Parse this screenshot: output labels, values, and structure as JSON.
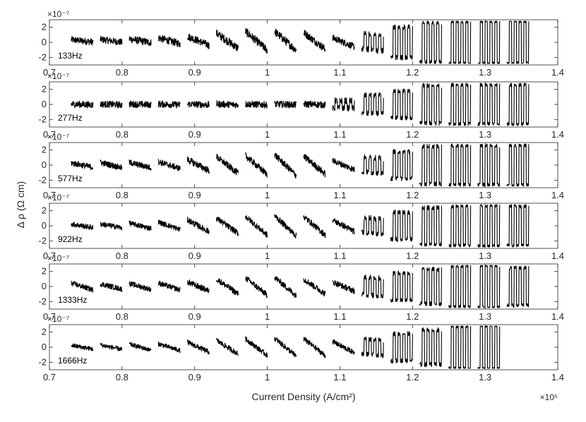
{
  "chart_data": {
    "type": "line",
    "subplot_count": 6,
    "xlabel": "Current Density (A/cm²)",
    "ylabel": "Δ ρ (Ω cm)",
    "x_exponent": "×10⁵",
    "y_exponent": "×10⁻⁷",
    "xlim": [
      0.7,
      1.4
    ],
    "ylim": [
      -3,
      3
    ],
    "xticks": [
      "0.7",
      "0.8",
      "0.9",
      "1",
      "1.1",
      "1.2",
      "1.3",
      "1.4"
    ],
    "yticks": [
      "2",
      "0",
      "-2"
    ],
    "segment_length": 0.03,
    "panels": [
      {
        "label": "133Hz",
        "segments": [
          {
            "x_start": 0.73,
            "offset": 0.2,
            "slope": 0.3,
            "square": 0,
            "noise": 0.45
          },
          {
            "x_start": 0.77,
            "offset": 0.2,
            "slope": 0.4,
            "square": 0,
            "noise": 0.45
          },
          {
            "x_start": 0.81,
            "offset": 0.2,
            "slope": 0.5,
            "square": 0,
            "noise": 0.5
          },
          {
            "x_start": 0.85,
            "offset": 0.2,
            "slope": 0.8,
            "square": 0,
            "noise": 0.5
          },
          {
            "x_start": 0.89,
            "offset": 0.2,
            "slope": 1.2,
            "square": 0,
            "noise": 0.5
          },
          {
            "x_start": 0.93,
            "offset": 0.2,
            "slope": 2.0,
            "square": 0,
            "noise": 0.55
          },
          {
            "x_start": 0.97,
            "offset": 0.2,
            "slope": 2.5,
            "square": 0,
            "noise": 0.55
          },
          {
            "x_start": 1.01,
            "offset": 0.2,
            "slope": 2.5,
            "square": 0,
            "noise": 0.55
          },
          {
            "x_start": 1.05,
            "offset": 0.2,
            "slope": 2.2,
            "square": 0,
            "noise": 0.5
          },
          {
            "x_start": 1.09,
            "offset": 0.0,
            "slope": 1.2,
            "square": 0,
            "noise": 0.45
          },
          {
            "x_start": 1.13,
            "offset": 0.0,
            "slope": 0.3,
            "square": 1.0,
            "noise": 0.4
          },
          {
            "x_start": 1.17,
            "offset": 0.0,
            "slope": 0.0,
            "square": 2.0,
            "noise": 0.35
          },
          {
            "x_start": 1.21,
            "offset": 0.0,
            "slope": 0.0,
            "square": 2.6,
            "noise": 0.3
          },
          {
            "x_start": 1.25,
            "offset": 0.0,
            "slope": 0.0,
            "square": 2.8,
            "noise": 0.25
          },
          {
            "x_start": 1.29,
            "offset": 0.0,
            "slope": 0.0,
            "square": 2.8,
            "noise": 0.25
          },
          {
            "x_start": 1.33,
            "offset": 0.0,
            "slope": 0.0,
            "square": 2.8,
            "noise": 0.25
          }
        ]
      },
      {
        "label": "277Hz",
        "segments": [
          {
            "x_start": 0.73,
            "offset": 0.0,
            "slope": 0.1,
            "square": 0,
            "noise": 0.45
          },
          {
            "x_start": 0.77,
            "offset": 0.0,
            "slope": 0.1,
            "square": 0,
            "noise": 0.45
          },
          {
            "x_start": 0.81,
            "offset": 0.0,
            "slope": 0.1,
            "square": 0,
            "noise": 0.45
          },
          {
            "x_start": 0.85,
            "offset": 0.0,
            "slope": 0.1,
            "square": 0,
            "noise": 0.45
          },
          {
            "x_start": 0.89,
            "offset": 0.0,
            "slope": 0.1,
            "square": 0,
            "noise": 0.45
          },
          {
            "x_start": 0.93,
            "offset": 0.0,
            "slope": 0.1,
            "square": 0,
            "noise": 0.45
          },
          {
            "x_start": 0.97,
            "offset": 0.0,
            "slope": 0.1,
            "square": 0,
            "noise": 0.45
          },
          {
            "x_start": 1.01,
            "offset": 0.0,
            "slope": 0.1,
            "square": 0,
            "noise": 0.45
          },
          {
            "x_start": 1.05,
            "offset": 0.0,
            "slope": 0.1,
            "square": 0,
            "noise": 0.45
          },
          {
            "x_start": 1.09,
            "offset": 0.0,
            "slope": 0.0,
            "square": 0.5,
            "noise": 0.4
          },
          {
            "x_start": 1.13,
            "offset": 0.0,
            "slope": 0.0,
            "square": 1.2,
            "noise": 0.35
          },
          {
            "x_start": 1.17,
            "offset": 0.0,
            "slope": 0.0,
            "square": 1.8,
            "noise": 0.3
          },
          {
            "x_start": 1.21,
            "offset": 0.0,
            "slope": 0.0,
            "square": 2.5,
            "noise": 0.3
          },
          {
            "x_start": 1.25,
            "offset": 0.0,
            "slope": 0.0,
            "square": 2.6,
            "noise": 0.25
          },
          {
            "x_start": 1.29,
            "offset": 0.0,
            "slope": 0.0,
            "square": 2.6,
            "noise": 0.25
          },
          {
            "x_start": 1.33,
            "offset": 0.0,
            "slope": 0.0,
            "square": 2.6,
            "noise": 0.25
          }
        ]
      },
      {
        "label": "577Hz",
        "segments": [
          {
            "x_start": 0.73,
            "offset": 0.0,
            "slope": 0.6,
            "square": 0,
            "noise": 0.4
          },
          {
            "x_start": 0.77,
            "offset": 0.0,
            "slope": 0.7,
            "square": 0,
            "noise": 0.4
          },
          {
            "x_start": 0.81,
            "offset": 0.0,
            "slope": 0.7,
            "square": 0,
            "noise": 0.4
          },
          {
            "x_start": 0.85,
            "offset": 0.0,
            "slope": 0.9,
            "square": 0,
            "noise": 0.4
          },
          {
            "x_start": 0.89,
            "offset": 0.0,
            "slope": 1.5,
            "square": 0,
            "noise": 0.45
          },
          {
            "x_start": 0.93,
            "offset": 0.0,
            "slope": 2.2,
            "square": 0,
            "noise": 0.45
          },
          {
            "x_start": 0.97,
            "offset": 0.0,
            "slope": 2.5,
            "square": 0,
            "noise": 0.45
          },
          {
            "x_start": 1.01,
            "offset": 0.0,
            "slope": 2.8,
            "square": 0,
            "noise": 0.45
          },
          {
            "x_start": 1.05,
            "offset": 0.0,
            "slope": 2.4,
            "square": 0,
            "noise": 0.45
          },
          {
            "x_start": 1.09,
            "offset": 0.0,
            "slope": 1.2,
            "square": 0,
            "noise": 0.4
          },
          {
            "x_start": 1.13,
            "offset": 0.0,
            "slope": 0.3,
            "square": 1.0,
            "noise": 0.35
          },
          {
            "x_start": 1.17,
            "offset": 0.0,
            "slope": 0.0,
            "square": 1.8,
            "noise": 0.3
          },
          {
            "x_start": 1.21,
            "offset": 0.0,
            "slope": 0.0,
            "square": 2.5,
            "noise": 0.3
          },
          {
            "x_start": 1.25,
            "offset": 0.0,
            "slope": 0.0,
            "square": 2.6,
            "noise": 0.25
          },
          {
            "x_start": 1.29,
            "offset": 0.0,
            "slope": 0.0,
            "square": 2.6,
            "noise": 0.25
          },
          {
            "x_start": 1.33,
            "offset": 0.0,
            "slope": 0.0,
            "square": 2.6,
            "noise": 0.25
          }
        ]
      },
      {
        "label": "922Hz",
        "segments": [
          {
            "x_start": 0.73,
            "offset": 0.0,
            "slope": 0.5,
            "square": 0,
            "noise": 0.35
          },
          {
            "x_start": 0.77,
            "offset": 0.0,
            "slope": 0.5,
            "square": 0,
            "noise": 0.35
          },
          {
            "x_start": 0.81,
            "offset": 0.0,
            "slope": 0.7,
            "square": 0,
            "noise": 0.35
          },
          {
            "x_start": 0.85,
            "offset": 0.0,
            "slope": 1.0,
            "square": 0,
            "noise": 0.35
          },
          {
            "x_start": 0.89,
            "offset": 0.0,
            "slope": 1.6,
            "square": 0,
            "noise": 0.4
          },
          {
            "x_start": 0.93,
            "offset": 0.0,
            "slope": 2.0,
            "square": 0,
            "noise": 0.4
          },
          {
            "x_start": 0.97,
            "offset": 0.0,
            "slope": 2.5,
            "square": 0,
            "noise": 0.4
          },
          {
            "x_start": 1.01,
            "offset": 0.0,
            "slope": 2.7,
            "square": 0,
            "noise": 0.4
          },
          {
            "x_start": 1.05,
            "offset": 0.0,
            "slope": 2.5,
            "square": 0,
            "noise": 0.4
          },
          {
            "x_start": 1.09,
            "offset": 0.0,
            "slope": 1.5,
            "square": 0,
            "noise": 0.4
          },
          {
            "x_start": 1.13,
            "offset": 0.0,
            "slope": 0.3,
            "square": 1.0,
            "noise": 0.35
          },
          {
            "x_start": 1.17,
            "offset": 0.0,
            "slope": 0.0,
            "square": 1.8,
            "noise": 0.3
          },
          {
            "x_start": 1.21,
            "offset": 0.0,
            "slope": 0.0,
            "square": 2.4,
            "noise": 0.3
          },
          {
            "x_start": 1.25,
            "offset": 0.0,
            "slope": 0.0,
            "square": 2.6,
            "noise": 0.25
          },
          {
            "x_start": 1.29,
            "offset": 0.0,
            "slope": 0.0,
            "square": 2.7,
            "noise": 0.25
          },
          {
            "x_start": 1.33,
            "offset": 0.0,
            "slope": 0.0,
            "square": 2.6,
            "noise": 0.25
          }
        ]
      },
      {
        "label": "1333Hz",
        "segments": [
          {
            "x_start": 0.73,
            "offset": 0.0,
            "slope": 0.9,
            "square": 0,
            "noise": 0.35
          },
          {
            "x_start": 0.77,
            "offset": 0.0,
            "slope": 0.7,
            "square": 0,
            "noise": 0.35
          },
          {
            "x_start": 0.81,
            "offset": 0.0,
            "slope": 0.8,
            "square": 0,
            "noise": 0.35
          },
          {
            "x_start": 0.85,
            "offset": 0.0,
            "slope": 0.9,
            "square": 0,
            "noise": 0.35
          },
          {
            "x_start": 0.89,
            "offset": 0.0,
            "slope": 1.2,
            "square": 0,
            "noise": 0.4
          },
          {
            "x_start": 0.93,
            "offset": 0.0,
            "slope": 2.0,
            "square": 0,
            "noise": 0.4
          },
          {
            "x_start": 0.97,
            "offset": 0.0,
            "slope": 2.3,
            "square": 0,
            "noise": 0.4
          },
          {
            "x_start": 1.01,
            "offset": 0.0,
            "slope": 2.5,
            "square": 0,
            "noise": 0.4
          },
          {
            "x_start": 1.05,
            "offset": 0.0,
            "slope": 2.0,
            "square": 0,
            "noise": 0.4
          },
          {
            "x_start": 1.09,
            "offset": 0.0,
            "slope": 1.2,
            "square": 0,
            "noise": 0.4
          },
          {
            "x_start": 1.13,
            "offset": 0.0,
            "slope": 0.3,
            "square": 1.2,
            "noise": 0.35
          },
          {
            "x_start": 1.17,
            "offset": 0.0,
            "slope": 0.0,
            "square": 1.8,
            "noise": 0.3
          },
          {
            "x_start": 1.21,
            "offset": 0.0,
            "slope": 0.0,
            "square": 2.3,
            "noise": 0.3
          },
          {
            "x_start": 1.25,
            "offset": 0.0,
            "slope": 0.0,
            "square": 2.7,
            "noise": 0.25
          },
          {
            "x_start": 1.29,
            "offset": 0.0,
            "slope": 0.0,
            "square": 2.8,
            "noise": 0.25
          },
          {
            "x_start": 1.33,
            "offset": 0.0,
            "slope": 0.0,
            "square": 2.5,
            "noise": 0.25
          }
        ]
      },
      {
        "label": "1666Hz",
        "segments": [
          {
            "x_start": 0.73,
            "offset": 0.0,
            "slope": 0.5,
            "square": 0,
            "noise": 0.3
          },
          {
            "x_start": 0.77,
            "offset": 0.0,
            "slope": 0.6,
            "square": 0,
            "noise": 0.3
          },
          {
            "x_start": 0.81,
            "offset": 0.0,
            "slope": 0.8,
            "square": 0,
            "noise": 0.3
          },
          {
            "x_start": 0.85,
            "offset": 0.0,
            "slope": 0.9,
            "square": 0,
            "noise": 0.3
          },
          {
            "x_start": 0.89,
            "offset": 0.0,
            "slope": 1.3,
            "square": 0,
            "noise": 0.35
          },
          {
            "x_start": 0.93,
            "offset": 0.0,
            "slope": 1.8,
            "square": 0,
            "noise": 0.35
          },
          {
            "x_start": 0.97,
            "offset": 0.0,
            "slope": 2.2,
            "square": 0,
            "noise": 0.35
          },
          {
            "x_start": 1.01,
            "offset": 0.0,
            "slope": 2.4,
            "square": 0,
            "noise": 0.35
          },
          {
            "x_start": 1.05,
            "offset": 0.0,
            "slope": 2.3,
            "square": 0,
            "noise": 0.35
          },
          {
            "x_start": 1.09,
            "offset": 0.0,
            "slope": 1.5,
            "square": 0,
            "noise": 0.35
          },
          {
            "x_start": 1.13,
            "offset": 0.0,
            "slope": 0.3,
            "square": 1.0,
            "noise": 0.3
          },
          {
            "x_start": 1.17,
            "offset": 0.0,
            "slope": 0.0,
            "square": 1.8,
            "noise": 0.3
          },
          {
            "x_start": 1.21,
            "offset": 0.0,
            "slope": 0.0,
            "square": 2.3,
            "noise": 0.3
          },
          {
            "x_start": 1.25,
            "offset": 0.0,
            "slope": 0.0,
            "square": 2.8,
            "noise": 0.25
          },
          {
            "x_start": 1.29,
            "offset": 0.0,
            "slope": 0.0,
            "square": 2.9,
            "noise": 0.25
          }
        ]
      }
    ]
  },
  "colors": {
    "trace": "#000000",
    "axis": "#262626",
    "background": "#ffffff"
  }
}
